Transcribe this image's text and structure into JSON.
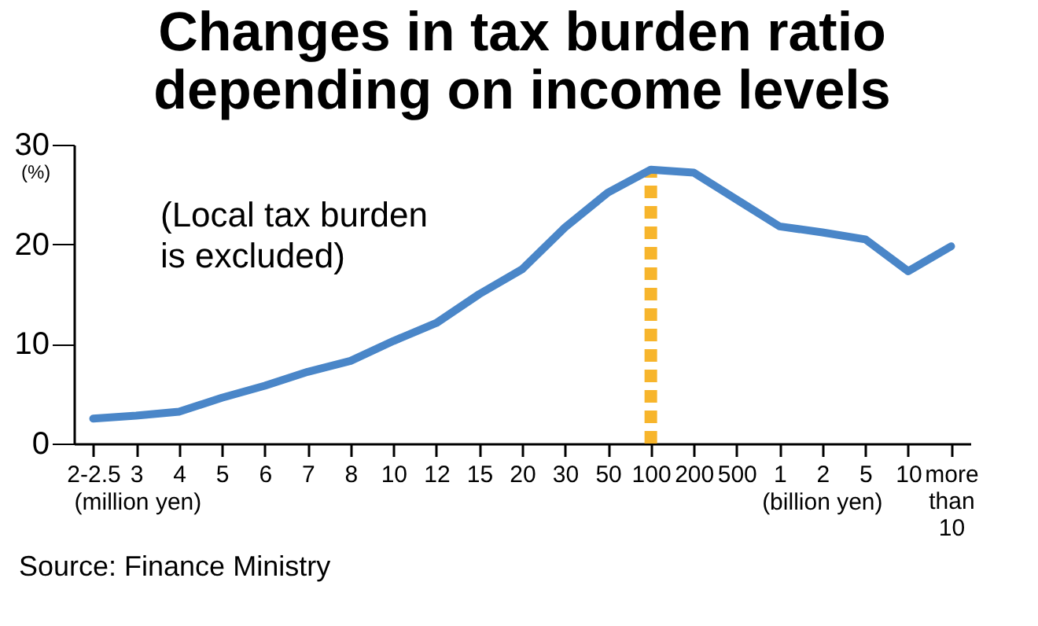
{
  "chart_data": {
    "type": "line",
    "title": "Changes in tax burden ratio depending on income levels",
    "ylabel": "(%)",
    "categories": [
      "2-2.5",
      "3",
      "4",
      "5",
      "6",
      "7",
      "8",
      "10",
      "12",
      "15",
      "20",
      "30",
      "50",
      "100",
      "200",
      "500",
      "1",
      "2",
      "5",
      "10",
      "more than 10"
    ],
    "series": [
      {
        "color": "#4a86c8",
        "values": [
          2.5,
          2.8,
          3.2,
          4.6,
          5.8,
          7.2,
          8.3,
          10.3,
          12.1,
          15.0,
          17.5,
          21.7,
          25.2,
          27.5,
          27.2,
          24.5,
          21.8,
          21.2,
          20.5,
          17.3,
          19.8
        ]
      }
    ],
    "ylim": [
      0,
      30
    ],
    "yticks": [
      0,
      10,
      20,
      30
    ],
    "grid": false,
    "marker": "none",
    "line_style": "solid",
    "ref_lines": [
      {
        "axis": "x",
        "value": "100",
        "label": null,
        "color": "#f7b52c",
        "line_style": "dashed"
      }
    ],
    "annotations": [
      "(Local tax burden is excluded)",
      "(million yen)",
      "(billion yen)",
      "Source: Finance Ministry"
    ]
  }
}
